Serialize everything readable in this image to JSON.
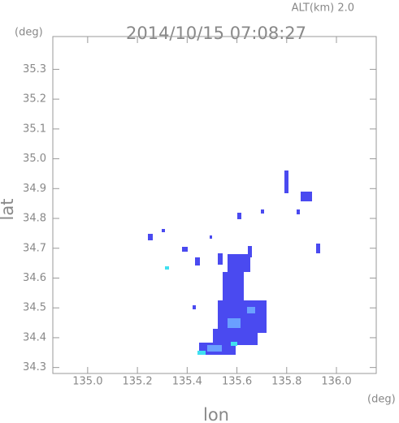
{
  "chart_data": {
    "type": "radar-map",
    "title": "2014/10/15 07:08:27",
    "subtitle": "ALT(km) 2.0",
    "y_unit": "(deg)",
    "x_unit": "(deg)",
    "xlabel": "lon",
    "ylabel": "lat",
    "xlim": [
      134.86,
      136.16
    ],
    "ylim": [
      34.28,
      35.41
    ],
    "xticks": [
      {
        "value": 135,
        "label": "135.0"
      },
      135.2,
      135.4,
      135.6,
      135.8,
      {
        "value": 136,
        "label": "136.0"
      }
    ],
    "yticks": [
      34.3,
      34.4,
      34.5,
      34.6,
      34.7,
      34.8,
      34.9,
      {
        "value": 35,
        "label": "35.0"
      },
      35.1,
      35.2,
      35.3
    ]
  }
}
